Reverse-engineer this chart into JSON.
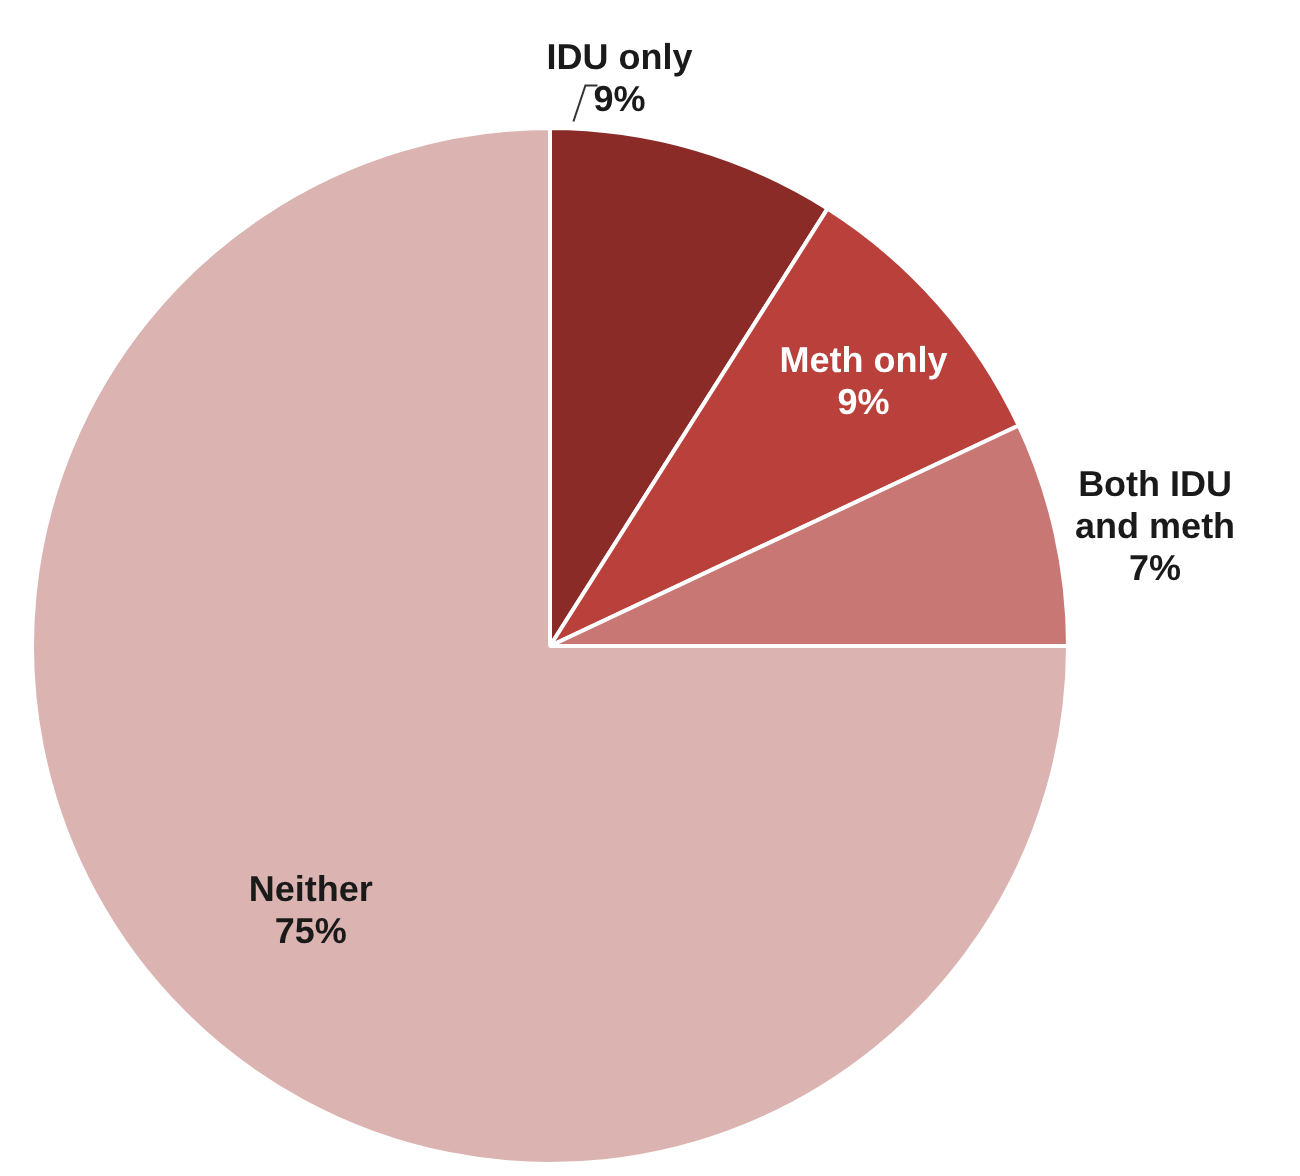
{
  "chart_data": {
    "type": "pie",
    "categories": [
      "IDU only",
      "Meth only",
      "Both IDU and meth",
      "Neither"
    ],
    "values": [
      9,
      9,
      7,
      75
    ],
    "value_labels": [
      "9%",
      "9%",
      "7%",
      "75%"
    ],
    "colors": [
      "#8b2b27",
      "#b9403b",
      "#c97774",
      "#dbb4b1"
    ],
    "legend": false
  }
}
